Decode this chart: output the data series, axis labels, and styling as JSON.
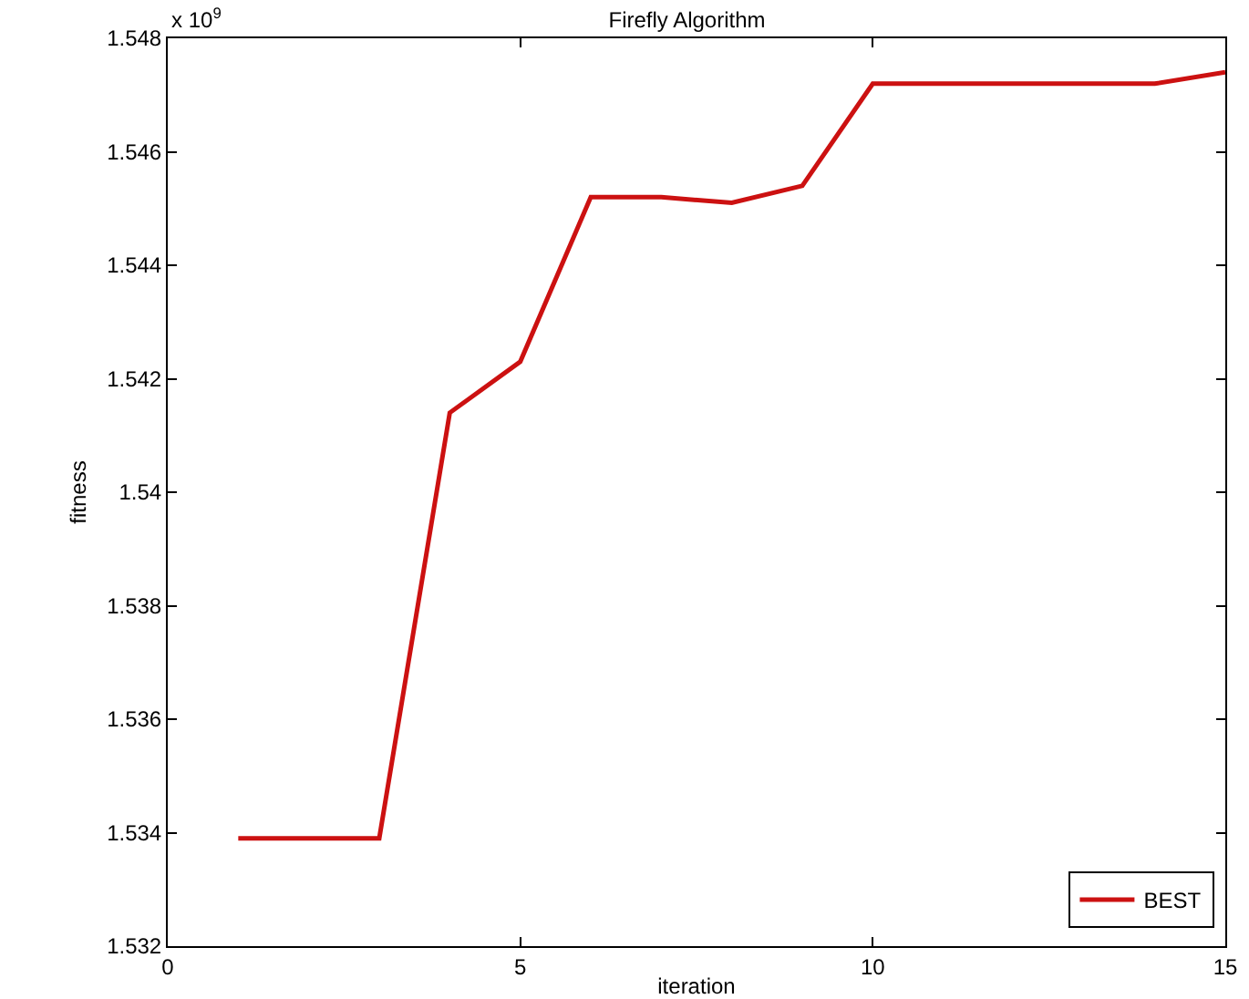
{
  "chart_data": {
    "type": "line",
    "title": "Firefly Algorithm",
    "xlabel": "iteration",
    "ylabel": "fitness",
    "annotations": [
      "x 10$^{9}$"
    ],
    "x": [
      1,
      2,
      3,
      4,
      5,
      6,
      7,
      8,
      9,
      10,
      11,
      12,
      13,
      14,
      15
    ],
    "series": [
      {
        "name": "BEST",
        "color": "#cc1111",
        "values": [
          1.5339,
          1.5339,
          1.5339,
          1.5414,
          1.5423,
          1.5452,
          1.5452,
          1.5451,
          1.5454,
          1.5472,
          1.5472,
          1.5472,
          1.5472,
          1.5472,
          1.5474
        ]
      }
    ],
    "xlim": [
      0,
      15
    ],
    "xticks": [
      0,
      5,
      10,
      15
    ],
    "ylim": [
      1.532,
      1.548
    ],
    "yticks": [
      {
        "value": 1.532,
        "label": "1.532"
      },
      {
        "value": 1.534,
        "label": "1.534"
      },
      {
        "value": 1.536,
        "label": "1.536"
      },
      {
        "value": 1.538,
        "label": "1.538"
      },
      1.54,
      {
        "value": 1.542,
        "label": "1.542"
      },
      {
        "value": 1.544,
        "label": "1.544"
      },
      {
        "value": 1.546,
        "label": "1.546"
      },
      {
        "value": 1.548,
        "label": "1.548"
      }
    ],
    "grid": false,
    "legend": "bottom right",
    "marker": "none",
    "line_style": "solid"
  }
}
